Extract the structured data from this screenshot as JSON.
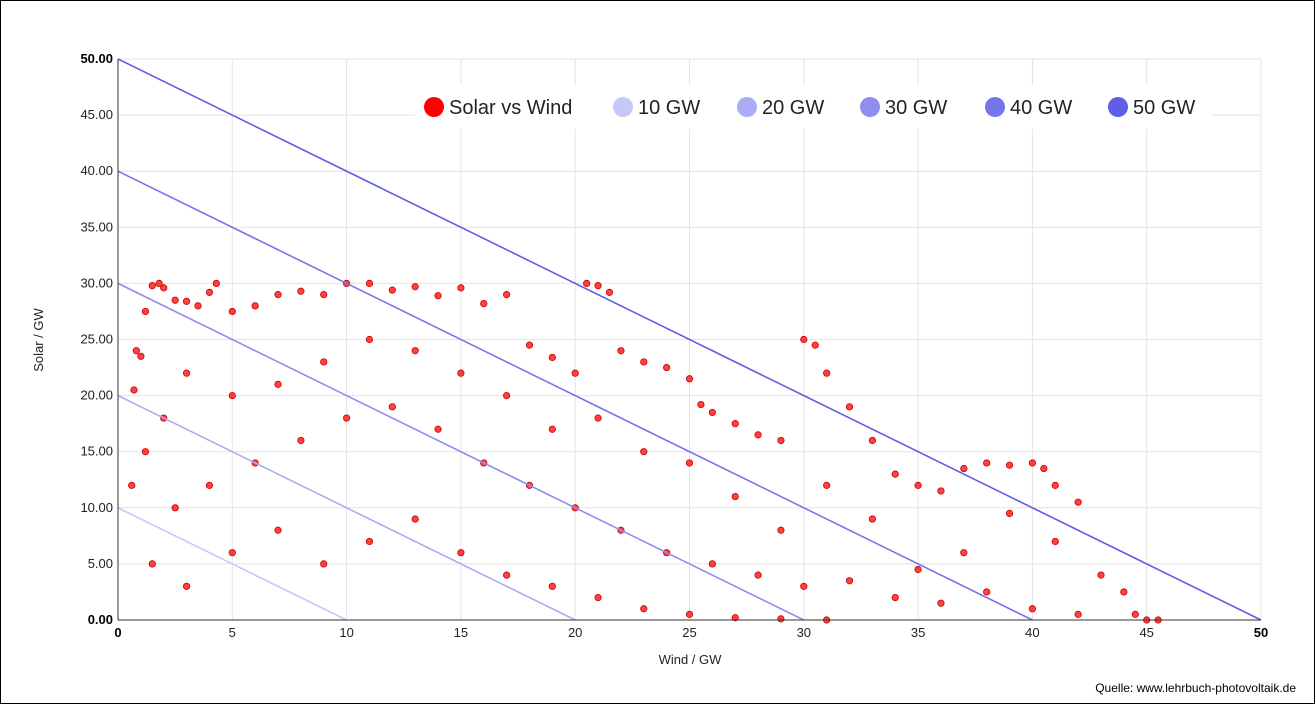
{
  "source_note": "Quelle: www.lehrbuch-photovoltaik.de",
  "chart_data": {
    "type": "scatter",
    "title": "",
    "xlabel": "Wind / GW",
    "ylabel": "Solar / GW",
    "xlim": [
      0,
      50
    ],
    "ylim": [
      0,
      50
    ],
    "x_ticks": [
      "0",
      "5",
      "10",
      "15",
      "20",
      "25",
      "30",
      "35",
      "40",
      "45",
      "50"
    ],
    "y_ticks": [
      "0.00",
      "5.00",
      "10.00",
      "15.00",
      "20.00",
      "25.00",
      "30.00",
      "35.00",
      "40.00",
      "45.00",
      "50.00"
    ],
    "grid": true,
    "legend_position": "top-right",
    "legend": [
      {
        "name": "Solar vs Wind",
        "color": "#ff0000"
      },
      {
        "name": "10 GW",
        "color": "#c8c8f8"
      },
      {
        "name": "20 GW",
        "color": "#acacf4"
      },
      {
        "name": "30 GW",
        "color": "#8e8eef"
      },
      {
        "name": "40 GW",
        "color": "#7676ec"
      },
      {
        "name": "50 GW",
        "color": "#5e5ee8"
      }
    ],
    "iso_lines": [
      {
        "name": "10 GW",
        "total": 10,
        "color": "#c8c8f8"
      },
      {
        "name": "20 GW",
        "total": 20,
        "color": "#acacf4"
      },
      {
        "name": "30 GW",
        "total": 30,
        "color": "#8e8eef"
      },
      {
        "name": "40 GW",
        "total": 40,
        "color": "#7676ec"
      },
      {
        "name": "50 GW",
        "total": 50,
        "color": "#5e5ee8"
      }
    ],
    "series": [
      {
        "name": "Solar vs Wind",
        "color": "#ff0000",
        "points": [
          [
            0.6,
            12.0
          ],
          [
            0.7,
            20.5
          ],
          [
            0.8,
            24.0
          ],
          [
            1.0,
            23.5
          ],
          [
            1.2,
            27.5
          ],
          [
            1.5,
            29.8
          ],
          [
            1.8,
            30.0
          ],
          [
            2.0,
            29.6
          ],
          [
            2.5,
            28.5
          ],
          [
            3.0,
            28.4
          ],
          [
            3.5,
            28.0
          ],
          [
            4.0,
            29.2
          ],
          [
            4.3,
            30.0
          ],
          [
            5.0,
            27.5
          ],
          [
            6.0,
            28.0
          ],
          [
            7.0,
            29.0
          ],
          [
            8.0,
            29.3
          ],
          [
            9.0,
            29.0
          ],
          [
            10.0,
            30.0
          ],
          [
            11.0,
            30.0
          ],
          [
            12.0,
            29.4
          ],
          [
            13.0,
            29.7
          ],
          [
            14.0,
            28.9
          ],
          [
            15.0,
            29.6
          ],
          [
            16.0,
            28.2
          ],
          [
            17.0,
            29.0
          ],
          [
            18.0,
            24.5
          ],
          [
            19.0,
            23.4
          ],
          [
            20.0,
            22.0
          ],
          [
            20.5,
            30.0
          ],
          [
            21.0,
            29.8
          ],
          [
            21.5,
            29.2
          ],
          [
            22.0,
            24.0
          ],
          [
            23.0,
            23.0
          ],
          [
            24.0,
            22.5
          ],
          [
            25.0,
            21.5
          ],
          [
            25.5,
            19.2
          ],
          [
            26.0,
            18.5
          ],
          [
            27.0,
            17.5
          ],
          [
            28.0,
            16.5
          ],
          [
            29.0,
            16.0
          ],
          [
            30.0,
            25.0
          ],
          [
            30.5,
            24.5
          ],
          [
            31.0,
            22.0
          ],
          [
            32.0,
            19.0
          ],
          [
            33.0,
            16.0
          ],
          [
            34.0,
            13.0
          ],
          [
            35.0,
            12.0
          ],
          [
            36.0,
            11.5
          ],
          [
            37.0,
            13.5
          ],
          [
            38.0,
            14.0
          ],
          [
            39.0,
            13.8
          ],
          [
            40.0,
            14.0
          ],
          [
            40.5,
            13.5
          ],
          [
            41.0,
            12.0
          ],
          [
            42.0,
            10.5
          ],
          [
            43.0,
            4.0
          ],
          [
            44.0,
            2.5
          ],
          [
            44.5,
            0.5
          ],
          [
            45.5,
            0.0
          ],
          [
            45.0,
            0.0
          ],
          [
            41.0,
            7.0
          ],
          [
            39.0,
            9.5
          ],
          [
            37.0,
            6.0
          ],
          [
            35.0,
            4.5
          ],
          [
            33.0,
            9.0
          ],
          [
            31.0,
            12.0
          ],
          [
            29.0,
            8.0
          ],
          [
            27.0,
            11.0
          ],
          [
            25.0,
            14.0
          ],
          [
            23.0,
            15.0
          ],
          [
            21.0,
            18.0
          ],
          [
            19.0,
            17.0
          ],
          [
            17.0,
            20.0
          ],
          [
            15.0,
            22.0
          ],
          [
            13.0,
            24.0
          ],
          [
            11.0,
            25.0
          ],
          [
            9.0,
            23.0
          ],
          [
            7.0,
            21.0
          ],
          [
            5.0,
            20.0
          ],
          [
            3.0,
            22.0
          ],
          [
            2.0,
            18.0
          ],
          [
            1.2,
            15.0
          ],
          [
            2.5,
            10.0
          ],
          [
            4.0,
            12.0
          ],
          [
            6.0,
            14.0
          ],
          [
            8.0,
            16.0
          ],
          [
            10.0,
            18.0
          ],
          [
            12.0,
            19.0
          ],
          [
            14.0,
            17.0
          ],
          [
            16.0,
            14.0
          ],
          [
            18.0,
            12.0
          ],
          [
            20.0,
            10.0
          ],
          [
            22.0,
            8.0
          ],
          [
            24.0,
            6.0
          ],
          [
            26.0,
            5.0
          ],
          [
            28.0,
            4.0
          ],
          [
            30.0,
            3.0
          ],
          [
            32.0,
            3.5
          ],
          [
            34.0,
            2.0
          ],
          [
            36.0,
            1.5
          ],
          [
            38.0,
            2.5
          ],
          [
            40.0,
            1.0
          ],
          [
            42.0,
            0.5
          ],
          [
            1.5,
            5.0
          ],
          [
            3.0,
            3.0
          ],
          [
            5.0,
            6.0
          ],
          [
            7.0,
            8.0
          ],
          [
            9.0,
            5.0
          ],
          [
            11.0,
            7.0
          ],
          [
            13.0,
            9.0
          ],
          [
            15.0,
            6.0
          ],
          [
            17.0,
            4.0
          ],
          [
            19.0,
            3.0
          ],
          [
            21.0,
            2.0
          ],
          [
            23.0,
            1.0
          ],
          [
            25.0,
            0.5
          ],
          [
            27.0,
            0.2
          ],
          [
            29.0,
            0.1
          ],
          [
            31.0,
            0.0
          ]
        ]
      }
    ]
  }
}
